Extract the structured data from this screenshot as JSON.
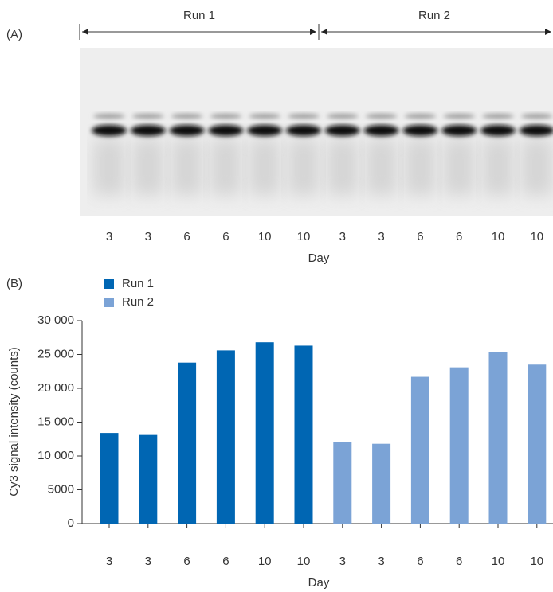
{
  "panel_a": {
    "label": "(A)",
    "runs": [
      "Run 1",
      "Run 2"
    ],
    "lanes": [
      "3",
      "3",
      "6",
      "6",
      "10",
      "10",
      "3",
      "3",
      "6",
      "6",
      "10",
      "10"
    ],
    "xlabel": "Day"
  },
  "chart_data": {
    "type": "bar",
    "panel_label": "(B)",
    "categories": [
      "3",
      "3",
      "6",
      "6",
      "10",
      "10",
      "3",
      "3",
      "6",
      "6",
      "10",
      "10"
    ],
    "series": [
      {
        "name": "Run 1",
        "color": "#0066b3",
        "values": [
          13400,
          13100,
          23800,
          25600,
          26800,
          26300,
          null,
          null,
          null,
          null,
          null,
          null
        ]
      },
      {
        "name": "Run 2",
        "color": "#7ba3d6",
        "values": [
          null,
          null,
          null,
          null,
          null,
          null,
          12000,
          11800,
          21700,
          23100,
          25300,
          23500
        ]
      }
    ],
    "ylim": [
      0,
      30000
    ],
    "yticks": [
      0,
      5000,
      {
        "value": 10000,
        "label": "10 000"
      },
      {
        "value": 15000,
        "label": "15 000"
      },
      {
        "value": 20000,
        "label": "20 000"
      },
      {
        "value": 25000,
        "label": "25 000"
      },
      {
        "value": 30000,
        "label": "30 000"
      }
    ],
    "xlabel": "Day",
    "ylabel": "Cy3 signal intensity (counts)",
    "legend": "top-left"
  }
}
